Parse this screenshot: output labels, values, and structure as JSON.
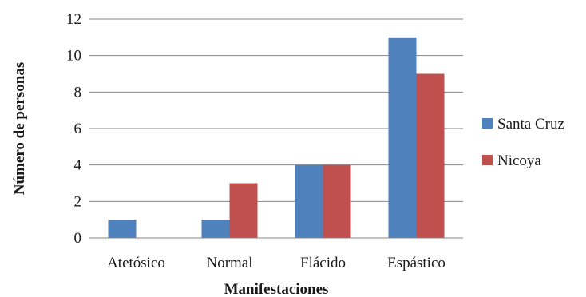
{
  "chart_data": {
    "type": "bar",
    "categories": [
      "Atetósico",
      "Normal",
      "Flácido",
      "Espástico"
    ],
    "series": [
      {
        "name": "Santa Cruz",
        "color": "#4F81BD",
        "values": [
          1,
          1,
          4,
          11
        ]
      },
      {
        "name": "Nicoya",
        "color": "#C0504D",
        "values": [
          0,
          3,
          4,
          9
        ]
      }
    ],
    "yticks": [
      "0",
      "2",
      "4",
      "6",
      "8",
      "10",
      "12"
    ],
    "ylim": [
      0,
      12
    ],
    "xlabel": "Manifestaciones",
    "ylabel": "Número de personas",
    "grid": true,
    "legend_position": "right"
  }
}
